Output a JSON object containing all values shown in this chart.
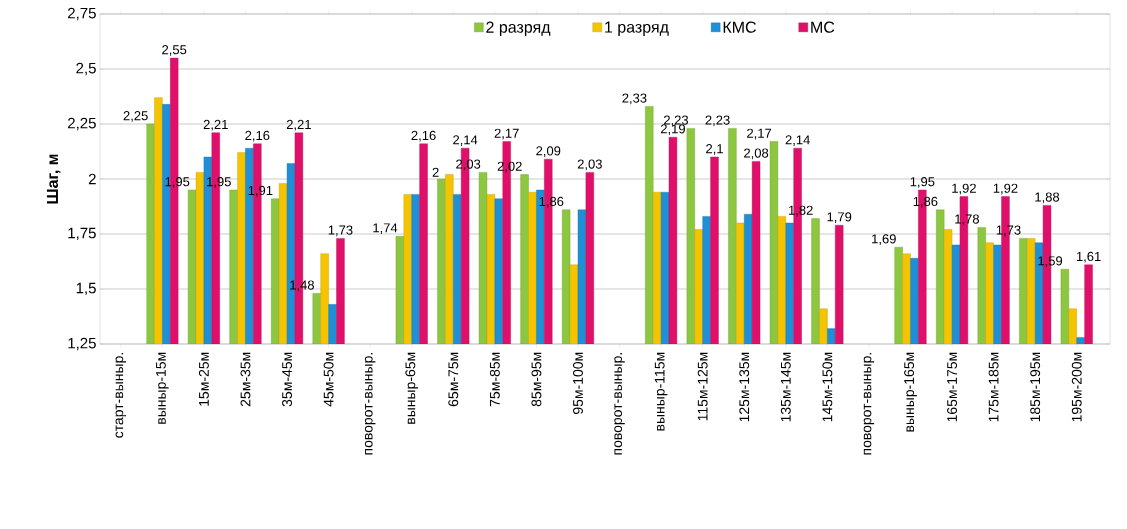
{
  "chart_data": {
    "type": "bar",
    "ylabel": "Шаг, м",
    "categories": [
      "старт-выныр.",
      "выныр-15м",
      "15м-25м",
      "25м-35м",
      "35м-45м",
      "45м-50м",
      "поворот-выныр.",
      "выныр-65м",
      "65м-75м",
      "75м-85м",
      "85м-95м",
      "95м-100м",
      "поворот-выныр.",
      "выныр-115м",
      "115м-125м",
      "125м-135м",
      "135м-145м",
      "145м-150м",
      "поворот-выныр.",
      "выныр-165м",
      "165м-175м",
      "175м-185м",
      "185м-195м",
      "195м-200м"
    ],
    "series": [
      {
        "name": "2 разряд",
        "color": "#8dc63f",
        "values": [
          null,
          2.25,
          1.95,
          1.95,
          1.91,
          1.48,
          null,
          1.74,
          2,
          2.03,
          2.02,
          1.86,
          null,
          2.33,
          2.23,
          2.23,
          2.17,
          1.82,
          null,
          1.69,
          1.86,
          1.78,
          1.73,
          1.59
        ],
        "value_labels": [
          null,
          "2,25",
          "1,95",
          "1,95",
          "1,91",
          "1,48",
          null,
          "1,74",
          "2",
          "2,03",
          "2,02",
          "1,86",
          null,
          "2,33",
          "2,23",
          "2,23",
          "2,17",
          "1,82",
          null,
          "1,69",
          "1,86",
          "1,78",
          "1,73",
          "1,59"
        ]
      },
      {
        "name": "1 разряд",
        "color": "#f5c400",
        "values": [
          null,
          2.37,
          2.03,
          2.12,
          1.98,
          1.66,
          null,
          1.93,
          2.02,
          1.93,
          1.94,
          1.61,
          null,
          1.94,
          1.77,
          1.8,
          1.83,
          1.41,
          null,
          1.66,
          1.77,
          1.71,
          1.73,
          1.41
        ]
      },
      {
        "name": "КМС",
        "color": "#1f8fd6",
        "values": [
          null,
          2.34,
          2.1,
          2.14,
          2.07,
          1.43,
          null,
          1.93,
          1.93,
          1.91,
          1.95,
          1.86,
          null,
          1.94,
          1.83,
          1.84,
          1.8,
          1.32,
          null,
          1.64,
          1.7,
          1.7,
          1.71,
          1.28
        ]
      },
      {
        "name": "МС",
        "color": "#e0106a",
        "values": [
          null,
          2.55,
          2.21,
          2.16,
          2.21,
          1.73,
          null,
          2.16,
          2.14,
          2.17,
          2.09,
          2.03,
          null,
          2.19,
          2.1,
          2.08,
          2.14,
          1.79,
          null,
          1.95,
          1.92,
          1.92,
          1.88,
          1.61
        ],
        "value_labels": [
          null,
          "2,55",
          "2,21",
          "2,16",
          "2,21",
          "1,73",
          null,
          "2,16",
          "2,14",
          "2,17",
          "2,09",
          "2,03",
          null,
          "2,19",
          "2,1",
          "2,08",
          "2,14",
          "1,79",
          null,
          "1,95",
          "1,92",
          "1,92",
          "1,88",
          "1,61"
        ]
      }
    ],
    "ylim": [
      1.25,
      2.75
    ],
    "yticks": [
      {
        "value": 1.25,
        "label": "1,25"
      },
      {
        "value": 1.5,
        "label": "1,5"
      },
      {
        "value": 1.75,
        "label": "1,75"
      },
      2,
      {
        "value": 2.25,
        "label": "2,25"
      },
      {
        "value": 2.5,
        "label": "2,5"
      },
      {
        "value": 2.75,
        "label": "2,75"
      }
    ],
    "grid": "y",
    "legend": "top"
  }
}
